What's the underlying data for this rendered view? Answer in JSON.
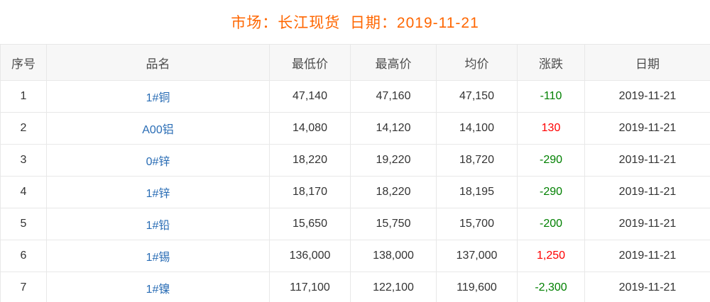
{
  "title": {
    "text": "市场：长江现货  日期：2019-11-21",
    "market_label": "市场：长江现货",
    "date_label": "日期：2019-11-21"
  },
  "colors": {
    "title": "#ff6600",
    "product_link": "#2a6db5",
    "change_up": "#ff0000",
    "change_down": "#008000",
    "header_bg": "#f7f7f7",
    "border": "#e8e8e8",
    "cell_text": "#333333"
  },
  "table": {
    "headers": [
      "序号",
      "品名",
      "最低价",
      "最高价",
      "均价",
      "涨跌",
      "日期"
    ],
    "rows": [
      {
        "no": "1",
        "name": "1#铜",
        "low": "47,140",
        "high": "47,160",
        "avg": "47,150",
        "change": "-110",
        "direction": "down",
        "date": "2019-11-21"
      },
      {
        "no": "2",
        "name": "A00铝",
        "low": "14,080",
        "high": "14,120",
        "avg": "14,100",
        "change": "130",
        "direction": "up",
        "date": "2019-11-21"
      },
      {
        "no": "3",
        "name": "0#锌",
        "low": "18,220",
        "high": "19,220",
        "avg": "18,720",
        "change": "-290",
        "direction": "down",
        "date": "2019-11-21"
      },
      {
        "no": "4",
        "name": "1#锌",
        "low": "18,170",
        "high": "18,220",
        "avg": "18,195",
        "change": "-290",
        "direction": "down",
        "date": "2019-11-21"
      },
      {
        "no": "5",
        "name": "1#铅",
        "low": "15,650",
        "high": "15,750",
        "avg": "15,700",
        "change": "-200",
        "direction": "down",
        "date": "2019-11-21"
      },
      {
        "no": "6",
        "name": "1#锡",
        "low": "136,000",
        "high": "138,000",
        "avg": "137,000",
        "change": "1,250",
        "direction": "up",
        "date": "2019-11-21"
      },
      {
        "no": "7",
        "name": "1#镍",
        "low": "117,100",
        "high": "122,100",
        "avg": "119,600",
        "change": "-2,300",
        "direction": "down",
        "date": "2019-11-21"
      }
    ]
  }
}
